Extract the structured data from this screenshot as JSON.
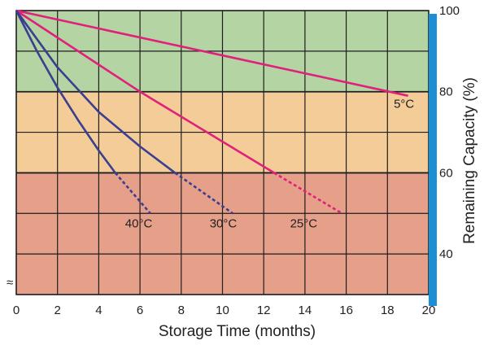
{
  "chart_data": {
    "type": "line",
    "xlabel": "Storage Time (months)",
    "ylabel": "Remaining Capacity (%)",
    "xlim": [
      0,
      20
    ],
    "ylim": [
      30,
      100
    ],
    "x_ticks": [
      "0",
      "2",
      "4",
      "6",
      "8",
      "10",
      "12",
      "14",
      "16",
      "18",
      "20"
    ],
    "y_ticks": [
      "100",
      "80",
      "60",
      "40"
    ],
    "grid": true,
    "bands": [
      {
        "from": 80,
        "to": 100,
        "color": "#b4d4a4"
      },
      {
        "from": 60,
        "to": 80,
        "color": "#f4cc98"
      },
      {
        "from": 30,
        "to": 60,
        "color": "#e6a08a"
      }
    ],
    "series": [
      {
        "name": "5°C",
        "color": "#e0207a",
        "solid": [
          [
            0,
            100
          ],
          [
            19,
            79
          ]
        ],
        "dashed": []
      },
      {
        "name": "25°C",
        "color": "#e0207a",
        "solid": [
          [
            0,
            100
          ],
          [
            6,
            80
          ],
          [
            12.5,
            60
          ]
        ],
        "dashed": [
          [
            12.5,
            60
          ],
          [
            15.8,
            50
          ]
        ]
      },
      {
        "name": "30°C",
        "color": "#3a3f8f",
        "solid": [
          [
            0,
            100
          ],
          [
            2,
            86
          ],
          [
            4,
            75
          ],
          [
            6,
            66.5
          ],
          [
            7.7,
            60
          ]
        ],
        "dashed": [
          [
            7.7,
            60
          ],
          [
            10.5,
            50
          ]
        ]
      },
      {
        "name": "40°C",
        "color": "#3a3f8f",
        "solid": [
          [
            0,
            100
          ],
          [
            1,
            90
          ],
          [
            2,
            81
          ],
          [
            3,
            73
          ],
          [
            4,
            65.5
          ],
          [
            4.8,
            60
          ]
        ],
        "dashed": [
          [
            4.8,
            60
          ],
          [
            6.5,
            50
          ]
        ]
      }
    ]
  },
  "axis_break_symbol": "≈"
}
